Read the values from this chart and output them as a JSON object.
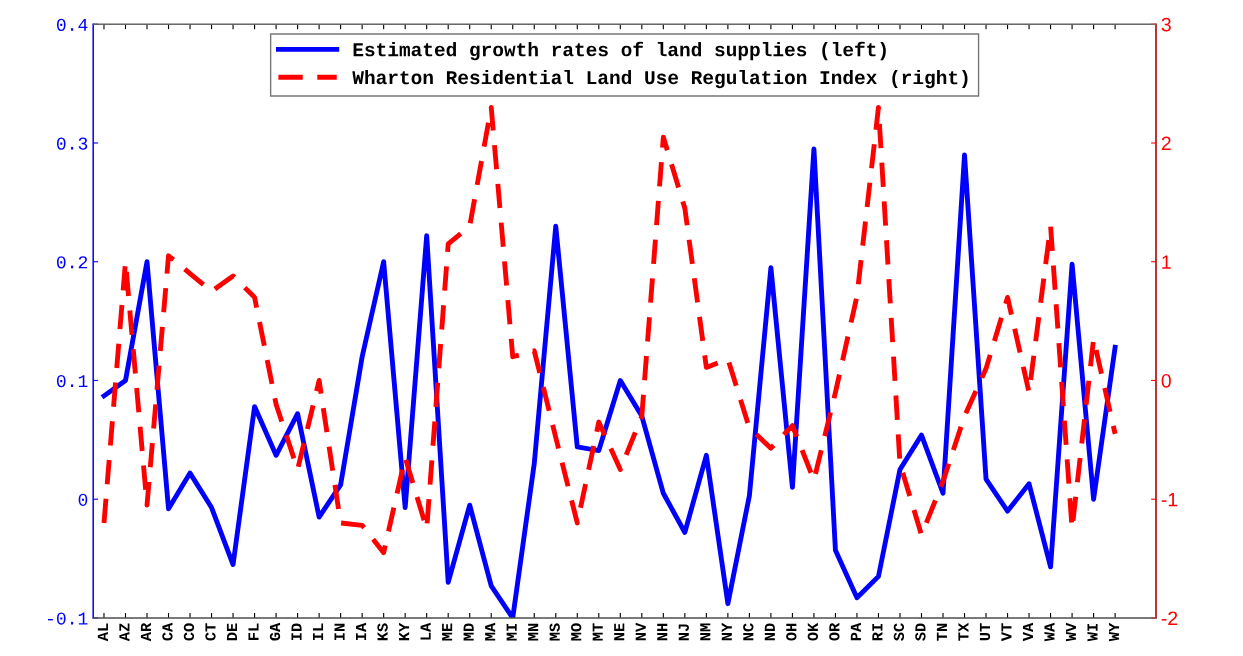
{
  "chart_data": {
    "type": "line",
    "categories": [
      "AL",
      "AZ",
      "AR",
      "CA",
      "CO",
      "CT",
      "DE",
      "FL",
      "GA",
      "ID",
      "IL",
      "IN",
      "IA",
      "KS",
      "KY",
      "LA",
      "ME",
      "MD",
      "MA",
      "MI",
      "MN",
      "MS",
      "MO",
      "MT",
      "NE",
      "NV",
      "NH",
      "NJ",
      "NM",
      "NY",
      "NC",
      "ND",
      "OH",
      "OK",
      "OR",
      "PA",
      "RI",
      "SC",
      "SD",
      "TN",
      "TX",
      "UT",
      "VT",
      "VA",
      "WA",
      "WV",
      "WI",
      "WY"
    ],
    "series": [
      {
        "name": "Estimated growth rates of land supplies (left)",
        "color": "#0000ff",
        "line_style": "solid",
        "values": [
          0.087,
          0.1,
          0.2,
          -0.008,
          0.022,
          -0.007,
          -0.055,
          0.078,
          0.037,
          0.072,
          -0.015,
          0.012,
          0.12,
          0.2,
          -0.007,
          0.222,
          -0.07,
          -0.005,
          -0.073,
          -0.1,
          0.03,
          0.23,
          0.044,
          0.041,
          0.1,
          0.07,
          0.005,
          -0.028,
          0.037,
          -0.088,
          0.003,
          0.195,
          0.01,
          0.295,
          -0.043,
          -0.083,
          -0.065,
          0.025,
          0.054,
          0.005,
          0.29,
          0.017,
          -0.01,
          0.013,
          -0.057,
          0.198,
          0.0,
          0.128
        ]
      },
      {
        "name": "Wharton Residential Land Use Regulation Index (right)",
        "color": "#ff0000",
        "line_style": "dashed",
        "axis": "y2",
        "values": [
          -1.2,
          1.0,
          -1.05,
          1.05,
          0.9,
          0.75,
          0.88,
          0.7,
          -0.2,
          -0.75,
          0.0,
          -1.2,
          -1.22,
          -1.45,
          -0.65,
          -1.25,
          1.15,
          1.3,
          2.3,
          0.2,
          0.25,
          -0.48,
          -1.2,
          -0.35,
          -0.75,
          -0.3,
          2.05,
          1.45,
          0.11,
          0.18,
          -0.4,
          -0.57,
          -0.38,
          -0.84,
          -0.1,
          0.71,
          2.3,
          -0.7,
          -1.3,
          -0.85,
          -0.3,
          0.1,
          0.7,
          -0.1,
          1.3,
          -1.25,
          0.35,
          -0.45
        ]
      }
    ],
    "ylim": [
      -0.1,
      0.4
    ],
    "yticks": [
      {
        "value": -0.1,
        "label": "-0.1"
      },
      0,
      0.1,
      0.2,
      0.3,
      0.4
    ],
    "y2lim": [
      -2,
      3
    ],
    "y2ticks": [
      {
        "value": -2,
        "label": "-2"
      },
      {
        "value": -1,
        "label": "-1"
      },
      0,
      1,
      2,
      3
    ],
    "legend": "top",
    "grid": false
  }
}
